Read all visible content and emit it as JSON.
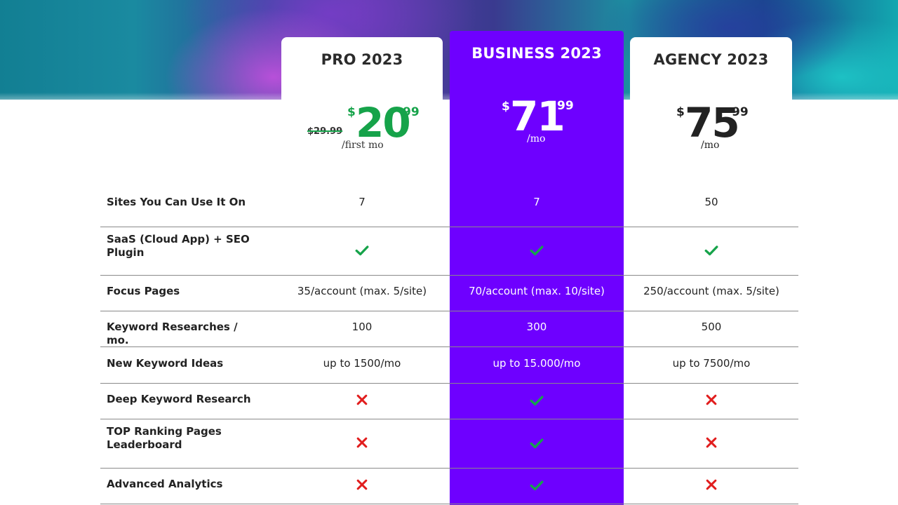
{
  "plans": [
    {
      "name": "PRO 2023",
      "original_price": "$29.99",
      "currency": "$",
      "price_whole": "20",
      "price_cents": "99",
      "period": "/first mo",
      "accent": "#16a34a"
    },
    {
      "name": "BUSINESS 2023",
      "currency": "$",
      "price_whole": "71",
      "price_cents": "99",
      "period": "/mo",
      "accent": "#6e00ff"
    },
    {
      "name": "AGENCY 2023",
      "currency": "$",
      "price_whole": "75",
      "price_cents": "99",
      "period": "/mo",
      "accent": "#222222"
    }
  ],
  "features": [
    {
      "label": "Sites You Can Use It On",
      "values": [
        "7",
        "7",
        "50"
      ]
    },
    {
      "label": "SaaS (Cloud App) + SEO Plugin",
      "values": [
        "check",
        "check",
        "check"
      ]
    },
    {
      "label": "Focus Pages",
      "values": [
        "35/account (max. 5/site)",
        "70/account (max. 10/site)",
        "250/account (max. 5/site)"
      ]
    },
    {
      "label": "Keyword Researches / mo.",
      "values": [
        "100",
        "300",
        "500"
      ]
    },
    {
      "label": "New Keyword Ideas",
      "values": [
        "up to 1500/mo",
        "up to 15.000/mo",
        "up to 7500/mo"
      ]
    },
    {
      "label": "Deep Keyword Research",
      "values": [
        "cross",
        "check",
        "cross"
      ]
    },
    {
      "label": "TOP Ranking Pages Leaderboard",
      "values": [
        "cross",
        "check",
        "cross"
      ]
    },
    {
      "label": "Advanced Analytics",
      "values": [
        "cross",
        "check",
        "cross"
      ]
    }
  ],
  "icons": {
    "check": "check-icon",
    "cross": "cross-icon"
  },
  "colors": {
    "check": "#16a34a",
    "cross": "#e11d1d",
    "business_bg": "#6e00ff"
  }
}
